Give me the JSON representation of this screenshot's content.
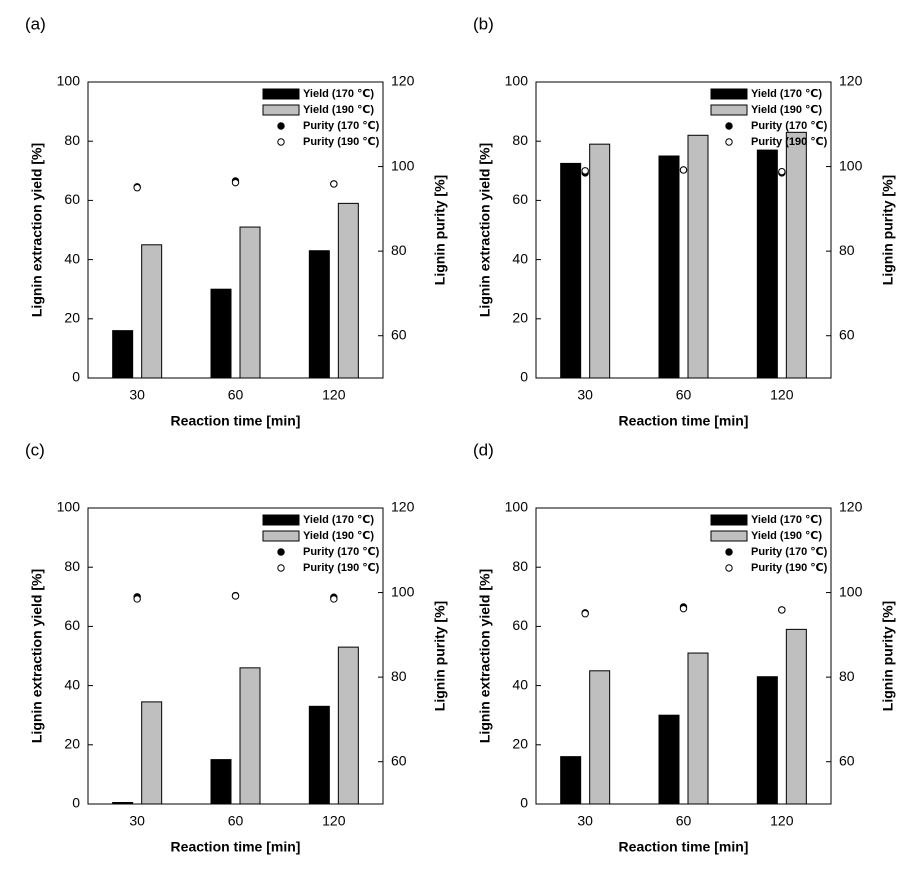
{
  "chart_data": [
    {
      "type": "combo",
      "title": "(a)",
      "xlabel": "Reaction time [min]",
      "ylabel": "Lignin extraction yield [%]",
      "y2label": "Lignin purity [%]",
      "categories": [
        "30",
        "60",
        "120"
      ],
      "ylim": [
        0,
        100
      ],
      "yticks": [
        0,
        20,
        40,
        60,
        80,
        100
      ],
      "y2lim": [
        50,
        120
      ],
      "y2ticks": [
        60,
        80,
        100,
        120
      ],
      "legend": "upper right",
      "series": [
        {
          "name": "Yield (170 ℃)",
          "type": "bar",
          "color": "#000000",
          "values": [
            16,
            30,
            43
          ]
        },
        {
          "name": "Yield (190 ℃)",
          "type": "bar",
          "color": "#bfbfbf",
          "values": [
            45,
            51,
            59
          ]
        },
        {
          "name": "Purity (170 ℃)",
          "type": "scatter",
          "axis": "y2",
          "color": "#000000",
          "values": [
            95.2,
            96.6,
            95.9
          ]
        },
        {
          "name": "Purity (190 ℃)",
          "type": "scatter",
          "axis": "y2",
          "color": "#ffffff",
          "values": [
            95.0,
            96.2,
            95.9
          ]
        }
      ]
    },
    {
      "type": "combo",
      "title": "(b)",
      "xlabel": "Reaction time [min]",
      "ylabel": "Lignin extraction yield [%]",
      "y2label": "Lignin purity [%]",
      "categories": [
        "30",
        "60",
        "120"
      ],
      "ylim": [
        0,
        100
      ],
      "yticks": [
        0,
        20,
        40,
        60,
        80,
        100
      ],
      "y2lim": [
        50,
        120
      ],
      "y2ticks": [
        60,
        80,
        100,
        120
      ],
      "legend": "upper right",
      "series": [
        {
          "name": "Yield (170 ℃)",
          "type": "bar",
          "color": "#000000",
          "values": [
            72.5,
            75,
            77
          ]
        },
        {
          "name": "Yield (190 ℃)",
          "type": "bar",
          "color": "#bfbfbf",
          "values": [
            79,
            82,
            83
          ]
        },
        {
          "name": "Purity (170 ℃)",
          "type": "scatter",
          "axis": "y2",
          "color": "#000000",
          "values": [
            98.5,
            99.2,
            98.5
          ]
        },
        {
          "name": "Purity (190 ℃)",
          "type": "scatter",
          "axis": "y2",
          "color": "#ffffff",
          "values": [
            99.0,
            99.2,
            98.8
          ]
        }
      ]
    },
    {
      "type": "combo",
      "title": "(c)",
      "xlabel": "Reaction time [min]",
      "ylabel": "Lignin extraction yield [%]",
      "y2label": "Lignin purity [%]",
      "categories": [
        "30",
        "60",
        "120"
      ],
      "ylim": [
        0,
        100
      ],
      "yticks": [
        0,
        20,
        40,
        60,
        80,
        100
      ],
      "y2lim": [
        50,
        120
      ],
      "y2ticks": [
        60,
        80,
        100,
        120
      ],
      "legend": "upper right",
      "series": [
        {
          "name": "Yield (170 ℃)",
          "type": "bar",
          "color": "#000000",
          "values": [
            0.5,
            15,
            33
          ]
        },
        {
          "name": "Yield (190 ℃)",
          "type": "bar",
          "color": "#bfbfbf",
          "values": [
            34.5,
            46,
            53
          ]
        },
        {
          "name": "Purity (170 ℃)",
          "type": "scatter",
          "axis": "y2",
          "color": "#000000",
          "values": [
            99.0,
            99.3,
            98.9
          ]
        },
        {
          "name": "Purity (190 ℃)",
          "type": "scatter",
          "axis": "y2",
          "color": "#ffffff",
          "values": [
            98.5,
            99.2,
            98.5
          ]
        }
      ]
    },
    {
      "type": "combo",
      "title": "(d)",
      "xlabel": "Reaction time [min]",
      "ylabel": "Lignin extraction yield [%]",
      "y2label": "Lignin purity [%]",
      "categories": [
        "30",
        "60",
        "120"
      ],
      "ylim": [
        0,
        100
      ],
      "yticks": [
        0,
        20,
        40,
        60,
        80,
        100
      ],
      "y2lim": [
        50,
        120
      ],
      "y2ticks": [
        60,
        80,
        100,
        120
      ],
      "legend": "upper right",
      "series": [
        {
          "name": "Yield (170 ℃)",
          "type": "bar",
          "color": "#000000",
          "values": [
            16,
            30,
            43
          ]
        },
        {
          "name": "Yield (190 ℃)",
          "type": "bar",
          "color": "#bfbfbf",
          "values": [
            45,
            51,
            59
          ]
        },
        {
          "name": "Purity (170 ℃)",
          "type": "scatter",
          "axis": "y2",
          "color": "#000000",
          "values": [
            95.2,
            96.6,
            95.9
          ]
        },
        {
          "name": "Purity (190 ℃)",
          "type": "scatter",
          "axis": "y2",
          "color": "#ffffff",
          "values": [
            95.0,
            96.2,
            95.9
          ]
        }
      ]
    }
  ]
}
